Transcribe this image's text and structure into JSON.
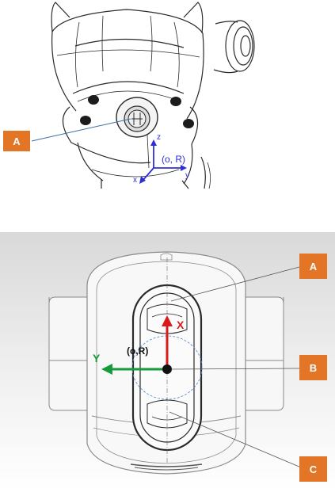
{
  "colors": {
    "callout": "#e27526",
    "axis_blue": "#2f2fd6",
    "axis_red": "#d61c1c",
    "axis_green": "#169a3a",
    "panel_top": "#d7d7d7",
    "panel_bottom": "#ffffff",
    "drawing_line": "#2a2a2a"
  },
  "top_diagram": {
    "callout_label": "A",
    "axis_z": "z",
    "axis_x": "x",
    "axis_y": "y",
    "frame_label": "(o, R)"
  },
  "bottom_diagram": {
    "callouts": [
      "A",
      "B",
      "C"
    ],
    "axis_x": "X",
    "axis_y": "Y",
    "frame_label": "(o,R)"
  }
}
